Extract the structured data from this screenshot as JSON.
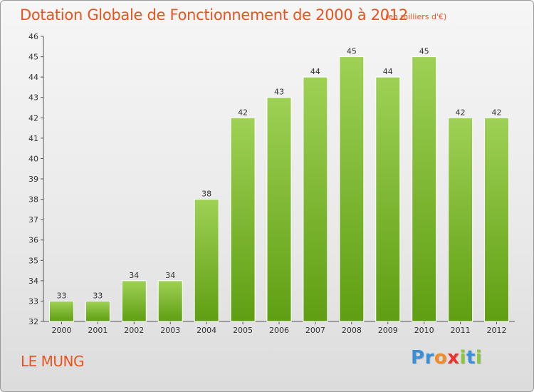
{
  "header": {
    "title": "Dotation Globale de Fonctionnement de 2000 à 2012",
    "unit": "(en milliers d'€)"
  },
  "footer": {
    "commune": "LE MUNG",
    "logo_letters": [
      "P",
      "r",
      "o",
      "x",
      "i",
      "t",
      "i"
    ],
    "logo_colors": [
      "#3a8fd6",
      "#3a8fd6",
      "#f28c28",
      "#e8342c",
      "#8cc63f",
      "#3a8fd6",
      "#8cc63f"
    ]
  },
  "colors": {
    "accent": "#e8541e",
    "bar_top": "#9ed155",
    "bar_bottom": "#5f9e12",
    "bar_stroke": "#ffffff",
    "axis": "#555555",
    "text": "#333333"
  },
  "chart_data": {
    "type": "bar",
    "title": "Dotation Globale de Fonctionnement de 2000 à 2012",
    "xlabel": "",
    "ylabel": "",
    "categories": [
      "2000",
      "2001",
      "2002",
      "2003",
      "2004",
      "2005",
      "2006",
      "2007",
      "2008",
      "2009",
      "2010",
      "2011",
      "2012"
    ],
    "values": [
      33,
      33,
      34,
      34,
      38,
      42,
      43,
      44,
      45,
      44,
      45,
      42,
      42
    ],
    "ylim": [
      32,
      46
    ],
    "yticks": [
      32,
      33,
      34,
      35,
      36,
      37,
      38,
      39,
      40,
      41,
      42,
      43,
      44,
      45,
      46
    ],
    "grid": false,
    "legend": "none"
  }
}
